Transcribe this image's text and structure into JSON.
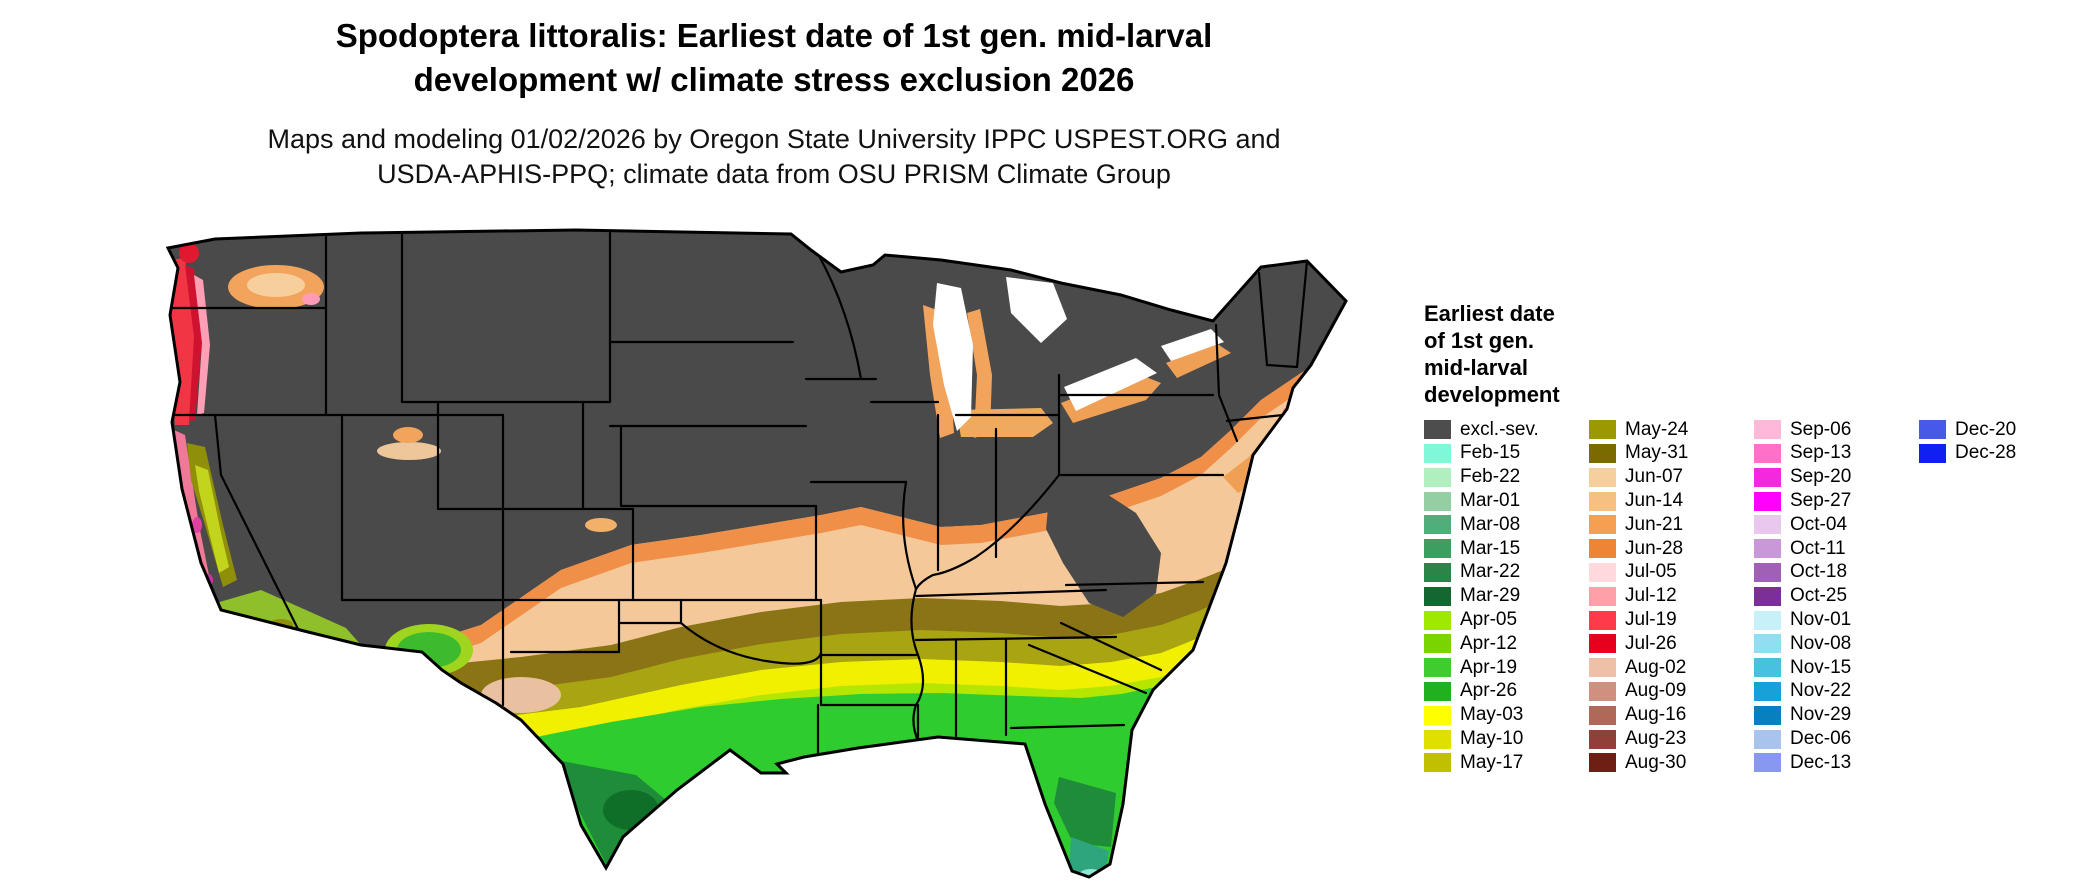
{
  "title": {
    "line1": "Spodoptera littoralis: Earliest date of 1st gen. mid-larval",
    "line2": "development w/ climate stress exclusion 2026"
  },
  "subtitle": {
    "line1": "Maps and modeling 01/02/2026 by Oregon State University IPPC USPEST.ORG and",
    "line2": "USDA-APHIS-PPQ; climate data from OSU PRISM Climate Group"
  },
  "legend": {
    "title_lines": [
      "Earliest date",
      "of 1st gen.",
      "mid-larval",
      "development"
    ],
    "columns": [
      [
        {
          "label": "excl.-sev.",
          "color": "#4d4d4d"
        },
        {
          "label": "Feb-15",
          "color": "#7ff8d8"
        },
        {
          "label": "Feb-22",
          "color": "#b0f0c0"
        },
        {
          "label": "Mar-01",
          "color": "#94cfa4"
        },
        {
          "label": "Mar-08",
          "color": "#4fae7a"
        },
        {
          "label": "Mar-15",
          "color": "#3c9f60"
        },
        {
          "label": "Mar-22",
          "color": "#2a8548"
        },
        {
          "label": "Mar-29",
          "color": "#14672e"
        },
        {
          "label": "Apr-05",
          "color": "#9fe800"
        },
        {
          "label": "Apr-12",
          "color": "#7ad400"
        },
        {
          "label": "Apr-19",
          "color": "#40cc30"
        },
        {
          "label": "Apr-26",
          "color": "#20b020"
        },
        {
          "label": "May-03",
          "color": "#ffff00"
        },
        {
          "label": "May-10",
          "color": "#e0e000"
        },
        {
          "label": "May-17",
          "color": "#c0c000"
        }
      ],
      [
        {
          "label": "May-24",
          "color": "#9a9a00"
        },
        {
          "label": "May-31",
          "color": "#7a6a00"
        },
        {
          "label": "Jun-07",
          "color": "#f5cf9e"
        },
        {
          "label": "Jun-14",
          "color": "#f5c080"
        },
        {
          "label": "Jun-21",
          "color": "#f5a050"
        },
        {
          "label": "Jun-28",
          "color": "#ef8432"
        },
        {
          "label": "Jul-05",
          "color": "#ffd9dc"
        },
        {
          "label": "Jul-12",
          "color": "#ff9fa8"
        },
        {
          "label": "Jul-19",
          "color": "#ff3a4a"
        },
        {
          "label": "Jul-26",
          "color": "#e6001e"
        },
        {
          "label": "Aug-02",
          "color": "#eec0a8"
        },
        {
          "label": "Aug-09",
          "color": "#cf9080"
        },
        {
          "label": "Aug-16",
          "color": "#b06858"
        },
        {
          "label": "Aug-23",
          "color": "#8f4038"
        },
        {
          "label": "Aug-30",
          "color": "#6e1f14"
        }
      ],
      [
        {
          "label": "Sep-06",
          "color": "#ffb8d8"
        },
        {
          "label": "Sep-13",
          "color": "#ff70c8"
        },
        {
          "label": "Sep-20",
          "color": "#f428dc"
        },
        {
          "label": "Sep-27",
          "color": "#ff00ff"
        },
        {
          "label": "Oct-04",
          "color": "#e8c8ec"
        },
        {
          "label": "Oct-11",
          "color": "#c898d8"
        },
        {
          "label": "Oct-18",
          "color": "#a060b8"
        },
        {
          "label": "Oct-25",
          "color": "#7c2f96"
        },
        {
          "label": "Nov-01",
          "color": "#c8f0f8"
        },
        {
          "label": "Nov-08",
          "color": "#90dff0"
        },
        {
          "label": "Nov-15",
          "color": "#48c0e0"
        },
        {
          "label": "Nov-22",
          "color": "#18a0d8"
        },
        {
          "label": "Nov-29",
          "color": "#0880c0"
        },
        {
          "label": "Dec-06",
          "color": "#a8c4ec"
        },
        {
          "label": "Dec-13",
          "color": "#8898f0"
        }
      ],
      [
        {
          "label": "Dec-20",
          "color": "#4858e8"
        },
        {
          "label": "Dec-28",
          "color": "#1020f0"
        }
      ]
    ]
  },
  "map": {
    "excluded_color": "#4a4a4a",
    "background": "#ffffff"
  }
}
